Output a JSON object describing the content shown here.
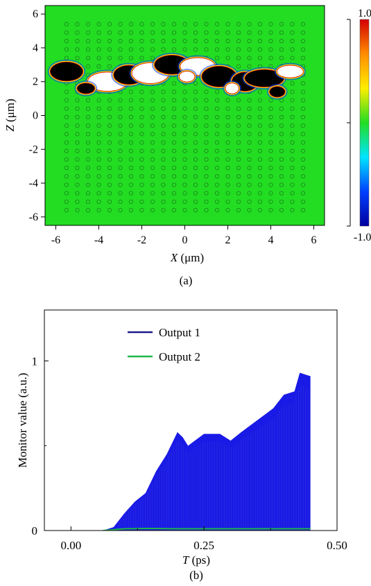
{
  "figure_a": {
    "caption": "(a)",
    "xlabel_var": "X",
    "xlabel_unit": " (μm)",
    "ylabel_var": "Z",
    "ylabel_unit": " (μm)",
    "colorbar": {
      "max_label": "1.0",
      "min_label": "-1.0"
    }
  },
  "figure_b": {
    "caption": "(b)",
    "xlabel_var": "T",
    "xlabel_unit": " (ps)",
    "ylabel": "Monitor value (a.u.)",
    "legend": [
      "Output 1",
      "Output 2"
    ]
  },
  "colors": {
    "field_background": "#22dd22",
    "output1": "#1a1ae6",
    "output1_legend": "#1a1a8c",
    "output2": "#1db84a",
    "colorbar_stops": [
      "#d40000",
      "#ff8c00",
      "#ffee00",
      "#22dd22",
      "#00e5ff",
      "#0040ff",
      "#0000a0"
    ]
  },
  "chart_data": [
    {
      "type": "heatmap",
      "title": "",
      "xlabel": "X (μm)",
      "ylabel": "Z (μm)",
      "xlim": [
        -6.5,
        6.5
      ],
      "ylim": [
        -6.5,
        6.5
      ],
      "xticks": [
        -6,
        -4,
        -2,
        0,
        2,
        4,
        6
      ],
      "yticks": [
        6,
        4,
        2,
        0,
        -2,
        -4,
        -6
      ],
      "colorbar": {
        "range": [
          -1.0,
          1.0
        ],
        "labels": [
          "1.0",
          "-1.0"
        ]
      },
      "lattice": {
        "x_range": [
          -5.5,
          5.5
        ],
        "z_range": [
          -5.6,
          5.6
        ],
        "spacing_um": 0.5
      },
      "notes": "Field concentrated in a waveguide band near Z≈2-3 μm"
    },
    {
      "type": "area",
      "title": "",
      "xlabel": "T (ps)",
      "ylabel": "Monitor value (a.u.)",
      "xlim": [
        -0.05,
        0.5
      ],
      "ylim": [
        0,
        1.3
      ],
      "xticks": [
        "0.00",
        "0.25",
        "0.50"
      ],
      "yticks": [
        "0",
        "1"
      ],
      "series": [
        {
          "name": "Output 1",
          "x": [
            0.06,
            0.08,
            0.1,
            0.12,
            0.14,
            0.16,
            0.18,
            0.2,
            0.21,
            0.22,
            0.25,
            0.28,
            0.3,
            0.32,
            0.35,
            0.38,
            0.4,
            0.42,
            0.43,
            0.44,
            0.45
          ],
          "values": [
            0.0,
            0.02,
            0.1,
            0.17,
            0.22,
            0.35,
            0.45,
            0.58,
            0.55,
            0.5,
            0.57,
            0.57,
            0.53,
            0.58,
            0.65,
            0.72,
            0.8,
            0.82,
            0.93,
            0.92,
            0.91
          ]
        },
        {
          "name": "Output 2",
          "x": [
            0.06,
            0.1,
            0.15,
            0.2,
            0.3,
            0.4,
            0.45
          ],
          "values": [
            0.0,
            0.01,
            0.012,
            0.01,
            0.01,
            0.01,
            0.01
          ]
        }
      ]
    }
  ]
}
